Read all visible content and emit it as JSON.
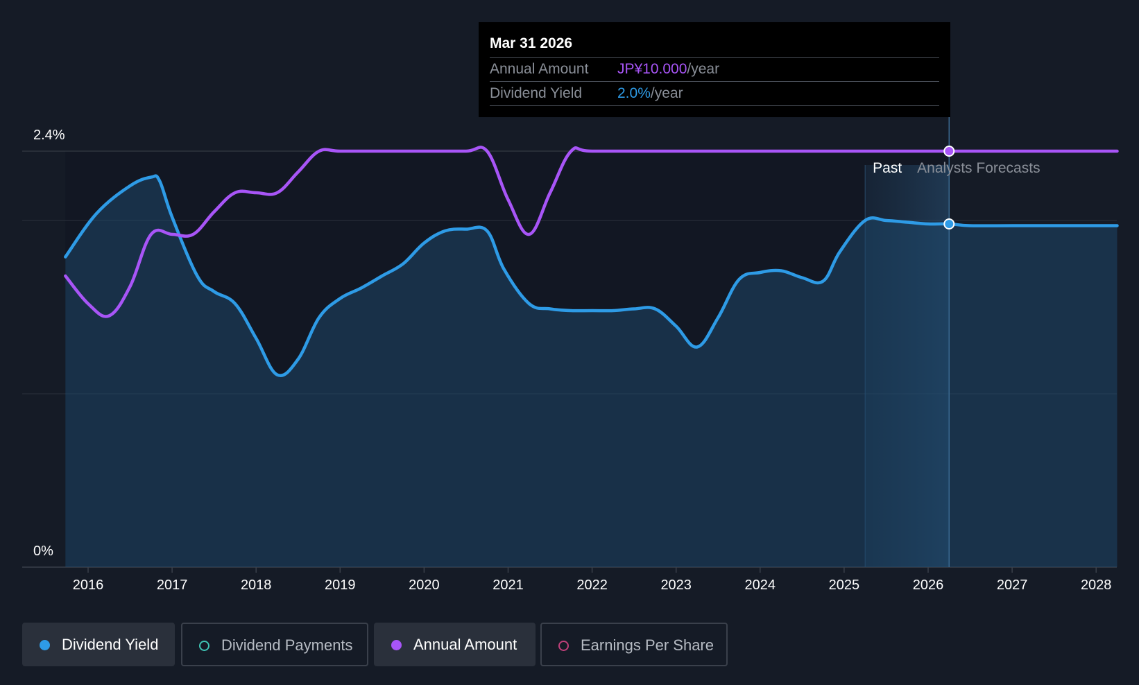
{
  "chart_data": {
    "type": "line",
    "y_axis": {
      "top_label": "2.4%",
      "bottom_label": "0%",
      "ylim": [
        0,
        2.4
      ]
    },
    "x_ticks": [
      "2016",
      "2017",
      "2018",
      "2019",
      "2020",
      "2021",
      "2022",
      "2023",
      "2024",
      "2025",
      "2026",
      "2027",
      "2028"
    ],
    "series": [
      {
        "name": "Dividend Yield",
        "color": "#2e9be6",
        "unit": "%",
        "points": [
          [
            2015.73,
            1.79
          ],
          [
            2016.1,
            2.04
          ],
          [
            2016.5,
            2.2
          ],
          [
            2016.75,
            2.25
          ],
          [
            2016.85,
            2.23
          ],
          [
            2017.0,
            2.02
          ],
          [
            2017.3,
            1.68
          ],
          [
            2017.5,
            1.59
          ],
          [
            2017.75,
            1.52
          ],
          [
            2018.0,
            1.32
          ],
          [
            2018.25,
            1.11
          ],
          [
            2018.5,
            1.2
          ],
          [
            2018.75,
            1.44
          ],
          [
            2019.0,
            1.55
          ],
          [
            2019.25,
            1.61
          ],
          [
            2019.5,
            1.68
          ],
          [
            2019.75,
            1.75
          ],
          [
            2020.0,
            1.87
          ],
          [
            2020.25,
            1.94
          ],
          [
            2020.5,
            1.95
          ],
          [
            2020.75,
            1.94
          ],
          [
            2020.95,
            1.72
          ],
          [
            2021.25,
            1.52
          ],
          [
            2021.5,
            1.49
          ],
          [
            2021.75,
            1.48
          ],
          [
            2022.0,
            1.48
          ],
          [
            2022.25,
            1.48
          ],
          [
            2022.5,
            1.49
          ],
          [
            2022.75,
            1.49
          ],
          [
            2023.0,
            1.39
          ],
          [
            2023.25,
            1.27
          ],
          [
            2023.5,
            1.44
          ],
          [
            2023.75,
            1.66
          ],
          [
            2024.0,
            1.7
          ],
          [
            2024.25,
            1.71
          ],
          [
            2024.5,
            1.67
          ],
          [
            2024.75,
            1.65
          ],
          [
            2024.95,
            1.82
          ],
          [
            2025.25,
            2.0
          ],
          [
            2025.5,
            2.0
          ],
          [
            2025.75,
            1.99
          ],
          [
            2026.0,
            1.98
          ],
          [
            2026.25,
            1.98
          ],
          [
            2026.5,
            1.97
          ],
          [
            2027.0,
            1.97
          ],
          [
            2027.5,
            1.97
          ],
          [
            2028.0,
            1.97
          ],
          [
            2028.25,
            1.97
          ]
        ]
      },
      {
        "name": "Annual Amount",
        "color": "#a855f7",
        "unit": "JP¥",
        "points": [
          [
            2015.73,
            1.68
          ],
          [
            2016.0,
            1.52
          ],
          [
            2016.25,
            1.45
          ],
          [
            2016.5,
            1.62
          ],
          [
            2016.75,
            1.92
          ],
          [
            2017.0,
            1.92
          ],
          [
            2017.25,
            1.92
          ],
          [
            2017.5,
            2.05
          ],
          [
            2017.75,
            2.16
          ],
          [
            2018.0,
            2.16
          ],
          [
            2018.25,
            2.16
          ],
          [
            2018.5,
            2.28
          ],
          [
            2018.75,
            2.4
          ],
          [
            2019.0,
            2.4
          ],
          [
            2019.5,
            2.4
          ],
          [
            2020.0,
            2.4
          ],
          [
            2020.5,
            2.4
          ],
          [
            2020.75,
            2.4
          ],
          [
            2021.0,
            2.12
          ],
          [
            2021.25,
            1.92
          ],
          [
            2021.5,
            2.16
          ],
          [
            2021.75,
            2.4
          ],
          [
            2022.0,
            2.4
          ],
          [
            2023.0,
            2.4
          ],
          [
            2024.0,
            2.4
          ],
          [
            2025.0,
            2.4
          ],
          [
            2026.0,
            2.4
          ],
          [
            2026.25,
            2.4
          ],
          [
            2027.0,
            2.4
          ],
          [
            2028.25,
            2.4
          ]
        ]
      }
    ],
    "past_label": "Past",
    "forecast_label": "Analysts Forecasts",
    "highlight_date": 2026.25,
    "highlight_yield": 1.98,
    "highlight_amount_level": 2.4,
    "divider_x": 2026.25
  },
  "tooltip": {
    "date": "Mar 31 2026",
    "annual_amount_label": "Annual Amount",
    "annual_amount_value": "JP¥10.000",
    "annual_amount_unit": "/year",
    "dividend_yield_label": "Dividend Yield",
    "dividend_yield_value": "2.0%",
    "dividend_yield_unit": "/year"
  },
  "legend": [
    {
      "label": "Dividend Yield",
      "color": "#2e9be6",
      "active": true
    },
    {
      "label": "Dividend Payments",
      "color": "#3fc5b5",
      "active": false
    },
    {
      "label": "Annual Amount",
      "color": "#a855f7",
      "active": true
    },
    {
      "label": "Earnings Per Share",
      "color": "#c0407a",
      "active": false
    }
  ]
}
